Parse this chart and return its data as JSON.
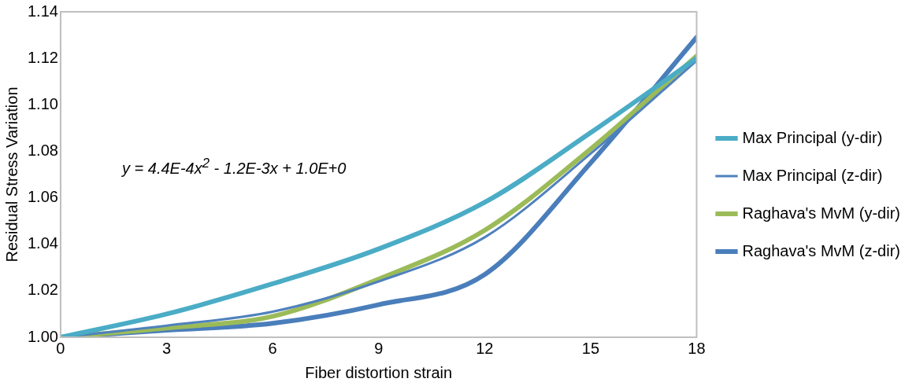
{
  "chart_data": {
    "type": "line",
    "xlabel": "Fiber distortion strain",
    "ylabel": "Residual Stress Variation",
    "x": [
      0,
      3,
      6,
      9,
      12,
      15,
      18
    ],
    "series": [
      {
        "name": "Max Principal (y-dir)",
        "color": "#4bacc6",
        "values": [
          1.0,
          1.01,
          1.023,
          1.038,
          1.058,
          1.088,
          1.12
        ]
      },
      {
        "name": "Max Principal (z-dir)",
        "color": "#4f81bd",
        "values": [
          1.0,
          1.005,
          1.011,
          1.024,
          1.043,
          1.079,
          1.119
        ]
      },
      {
        "name": "Raghava's MvM (y-dir)",
        "color": "#9bbb59",
        "values": [
          1.0,
          1.004,
          1.009,
          1.025,
          1.046,
          1.081,
          1.121
        ]
      },
      {
        "name": "Raghava's MvM (z-dir)",
        "color": "#4a7ebb",
        "values": [
          1.0,
          1.003,
          1.006,
          1.014,
          1.027,
          1.075,
          1.129
        ]
      }
    ],
    "xlim": [
      0,
      18
    ],
    "xticks": [
      0,
      3,
      6,
      9,
      12,
      15,
      18
    ],
    "ylim": [
      1.0,
      1.14
    ],
    "yticks": [
      {
        "value": 1.0,
        "label": "1.00"
      },
      {
        "value": 1.02,
        "label": "1.02"
      },
      {
        "value": 1.04,
        "label": "1.04"
      },
      {
        "value": 1.06,
        "label": "1.06"
      },
      {
        "value": 1.08,
        "label": "1.08"
      },
      {
        "value": 1.1,
        "label": "1.10"
      },
      {
        "value": 1.12,
        "label": "1.12"
      },
      {
        "value": 1.14,
        "label": "1.14"
      }
    ],
    "grid": false,
    "legend": "right",
    "marker": "none",
    "line_style": "solid",
    "annotations": [
      "y = 4.4E-4x$^{2}$ - 1.2E-3x + 1.0E+0"
    ]
  }
}
